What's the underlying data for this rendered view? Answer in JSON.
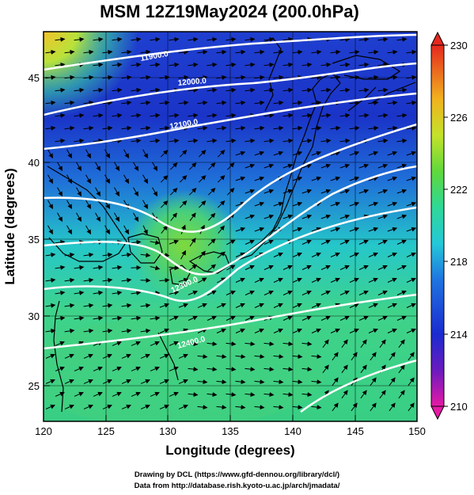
{
  "title": "MSM 12Z19May2024 (200.0hPa)",
  "x_axis": {
    "label": "Longitude (degrees)",
    "ticks": [
      "120",
      "125",
      "130",
      "135",
      "140",
      "145",
      "150"
    ]
  },
  "y_axis": {
    "label": "Latitude  (degrees)",
    "ticks": [
      "25",
      "30",
      "35",
      "40",
      "45"
    ]
  },
  "colorbar": {
    "ticks": [
      "210",
      "214",
      "218",
      "222",
      "226",
      "230"
    ]
  },
  "contours": [
    {
      "label": "11900.0"
    },
    {
      "label": "12000.0"
    },
    {
      "label": "12100.0"
    },
    {
      "label": "12300.0"
    },
    {
      "label": "12400.0"
    }
  ],
  "footer": {
    "line1": "Drawing by DCL (https://www.gfd-dennou.org/library/dcl/)",
    "line2": "Data from http://database.rish.kyoto-u.ac.jp/arch/jmadata/"
  }
}
